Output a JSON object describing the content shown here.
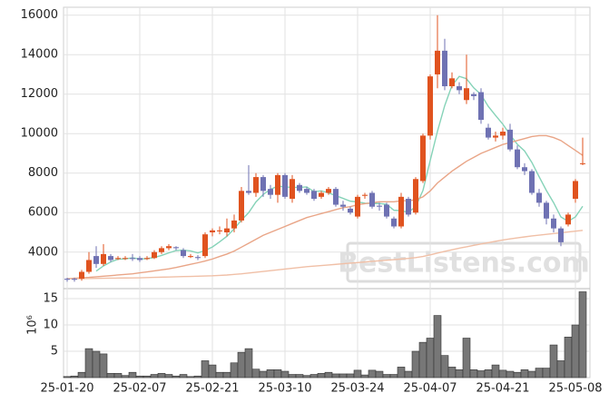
{
  "chart_data": [
    {
      "type": "candlestick",
      "watermark": "BestListens.com",
      "up_color": "#e0531f",
      "down_color": "#6f72b3",
      "open": [
        2650,
        2650,
        2650,
        3000,
        3800,
        3400,
        3800,
        3650,
        3700,
        3700,
        3700,
        3650,
        3700,
        4000,
        4200,
        4250,
        4100,
        3750,
        3750,
        3800,
        5000,
        5050,
        5000,
        5200,
        5600,
        7100,
        7000,
        7800,
        7200,
        6900,
        7900,
        6700,
        7400,
        7200,
        7100,
        6800,
        7000,
        7200,
        6400,
        6200,
        5800,
        6850,
        7000,
        6350,
        6400,
        5700,
        5300,
        6700,
        6000,
        7600,
        9900,
        13000,
        14200,
        12400,
        12400,
        11700,
        12000,
        12100,
        10300,
        9800,
        9900,
        10200,
        9200,
        8300,
        8100,
        7000,
        6500,
        5700,
        5200,
        5400,
        6700,
        8500
      ],
      "high": [
        2700,
        2700,
        3100,
        4000,
        4300,
        4400,
        3900,
        3800,
        3800,
        3900,
        3800,
        3800,
        4100,
        4300,
        4400,
        4300,
        4200,
        3900,
        3850,
        5000,
        5200,
        5300,
        5700,
        5900,
        7300,
        8400,
        8000,
        7900,
        7400,
        8000,
        8000,
        7900,
        7500,
        7300,
        7200,
        7100,
        7300,
        7300,
        6600,
        6300,
        6900,
        7000,
        7100,
        6500,
        6500,
        5800,
        7000,
        6800,
        7800,
        10000,
        13000,
        16000,
        14800,
        13100,
        12600,
        14000,
        12100,
        12300,
        10500,
        10100,
        10300,
        10500,
        9400,
        8500,
        8200,
        7200,
        6600,
        5900,
        5300,
        6000,
        7700,
        9800
      ],
      "low": [
        2500,
        2500,
        2550,
        2900,
        3200,
        3300,
        3500,
        3600,
        3600,
        3550,
        3500,
        3600,
        3650,
        3900,
        4100,
        4100,
        3700,
        3700,
        3600,
        3700,
        4800,
        4900,
        4800,
        5000,
        5500,
        6900,
        6800,
        6800,
        6700,
        6500,
        6700,
        6500,
        7000,
        6900,
        6600,
        6700,
        6900,
        6300,
        6100,
        5900,
        5700,
        6700,
        6200,
        6100,
        5700,
        5200,
        5200,
        5800,
        5900,
        7500,
        9700,
        12300,
        12200,
        12300,
        12000,
        11500,
        11700,
        10500,
        9700,
        9600,
        9700,
        9100,
        8200,
        7900,
        6900,
        6300,
        5400,
        5000,
        4300,
        5300,
        6500,
        8400
      ],
      "close": [
        2600,
        2600,
        3000,
        3600,
        3400,
        3900,
        3600,
        3700,
        3700,
        3650,
        3600,
        3700,
        4000,
        4200,
        4300,
        4200,
        3800,
        3800,
        3700,
        4900,
        5100,
        5100,
        5200,
        5600,
        7100,
        7000,
        7800,
        7100,
        6900,
        7900,
        6800,
        7700,
        7100,
        7000,
        6700,
        7000,
        7200,
        6400,
        6300,
        6000,
        6800,
        6900,
        6300,
        6300,
        5800,
        5300,
        6800,
        5900,
        7700,
        9900,
        12900,
        14200,
        12400,
        12800,
        12200,
        12300,
        11900,
        10700,
        9800,
        9900,
        10100,
        9200,
        8300,
        8100,
        7000,
        6500,
        5700,
        5200,
        4500,
        5900,
        7600,
        8500
      ],
      "series": [
        {
          "color": "#86d3b8",
          "values": [
            null,
            null,
            null,
            null,
            3040,
            3300,
            3500,
            3640,
            3660,
            3710,
            3650,
            3670,
            3730,
            3830,
            3960,
            4080,
            4100,
            4060,
            3960,
            4080,
            4260,
            4520,
            4800,
            5180,
            5620,
            6000,
            6540,
            6920,
            7180,
            7340,
            7300,
            7280,
            7280,
            7300,
            7060,
            7100,
            7000,
            6860,
            6720,
            6580,
            6540,
            6480,
            6460,
            6460,
            6420,
            6120,
            6100,
            6020,
            6300,
            7120,
            8640,
            10120,
            11420,
            12440,
            12900,
            12780,
            12320,
            11980,
            11380,
            10920,
            10480,
            9940,
            9460,
            9120,
            8540,
            7820,
            7120,
            6500,
            5780,
            5560,
            5780,
            6320
          ]
        },
        {
          "color": "#e9a587",
          "values": [
            2650,
            2680,
            2700,
            2720,
            2750,
            2780,
            2810,
            2840,
            2870,
            2900,
            2950,
            3000,
            3050,
            3100,
            3150,
            3220,
            3300,
            3380,
            3460,
            3550,
            3650,
            3780,
            3900,
            4050,
            4250,
            4450,
            4650,
            4850,
            5000,
            5150,
            5300,
            5450,
            5600,
            5750,
            5850,
            5950,
            6050,
            6150,
            6250,
            6300,
            6400,
            6450,
            6500,
            6550,
            6550,
            6550,
            6600,
            6600,
            6650,
            6800,
            7100,
            7500,
            7800,
            8100,
            8350,
            8600,
            8800,
            9000,
            9150,
            9300,
            9450,
            9550,
            9650,
            9750,
            9850,
            9900,
            9900,
            9800,
            9650,
            9400,
            9150,
            8900
          ]
        },
        {
          "color": "#f0bfa6",
          "values": [
            2650,
            2655,
            2660,
            2665,
            2670,
            2675,
            2680,
            2685,
            2690,
            2695,
            2700,
            2710,
            2720,
            2730,
            2740,
            2750,
            2760,
            2770,
            2780,
            2790,
            2800,
            2820,
            2840,
            2870,
            2900,
            2940,
            2980,
            3020,
            3060,
            3100,
            3140,
            3180,
            3220,
            3260,
            3290,
            3320,
            3350,
            3380,
            3410,
            3440,
            3470,
            3500,
            3530,
            3560,
            3590,
            3620,
            3650,
            3680,
            3720,
            3780,
            3860,
            3950,
            4040,
            4120,
            4200,
            4270,
            4340,
            4410,
            4480,
            4550,
            4610,
            4670,
            4720,
            4770,
            4820,
            4860,
            4900,
            4940,
            4980,
            5020,
            5060,
            5100
          ]
        }
      ],
      "ylim": [
        2150,
        16400
      ],
      "yticks": [
        4000,
        6000,
        8000,
        10000,
        12000,
        14000,
        16000
      ],
      "grid": true
    },
    {
      "type": "bar",
      "y_label": "10⁶",
      "color": "#777777",
      "categories": [
        "25-01-20",
        null,
        null,
        null,
        null,
        null,
        null,
        null,
        null,
        null,
        "25-02-07",
        null,
        null,
        null,
        null,
        null,
        null,
        null,
        null,
        null,
        "25-02-21",
        null,
        null,
        null,
        null,
        null,
        null,
        null,
        null,
        null,
        "25-03-10",
        null,
        null,
        null,
        null,
        null,
        null,
        null,
        null,
        null,
        "25-03-24",
        null,
        null,
        null,
        null,
        null,
        null,
        null,
        null,
        null,
        "25-04-07",
        null,
        null,
        null,
        null,
        null,
        null,
        null,
        null,
        null,
        "25-04-21",
        null,
        null,
        null,
        null,
        null,
        null,
        null,
        null,
        null,
        "25-05-08",
        null
      ],
      "values": [
        0.2,
        0.3,
        1,
        5.5,
        5,
        4.5,
        0.8,
        0.8,
        0.4,
        1,
        0.3,
        0.3,
        0.6,
        0.8,
        0.6,
        0.3,
        0.6,
        0.2,
        0.3,
        3.2,
        2.4,
        1,
        1,
        2.8,
        4.8,
        5.5,
        1.6,
        1.2,
        1.5,
        1.5,
        1.2,
        0.6,
        0.6,
        0.4,
        0.6,
        0.8,
        1,
        0.7,
        0.7,
        0.7,
        1.4,
        0.5,
        1.4,
        1.2,
        0.6,
        0.6,
        2,
        1.2,
        5,
        6.7,
        7.5,
        11.8,
        4.2,
        2,
        1.5,
        7.5,
        1.5,
        1.3,
        1.5,
        2.4,
        1.4,
        1.2,
        1,
        1.5,
        1.2,
        1.8,
        1.8,
        6.2,
        3.2,
        7.7,
        10,
        16.3
      ],
      "ylim": [
        0,
        16.9
      ],
      "yticks": [
        5,
        10,
        15
      ],
      "grid": true
    }
  ]
}
